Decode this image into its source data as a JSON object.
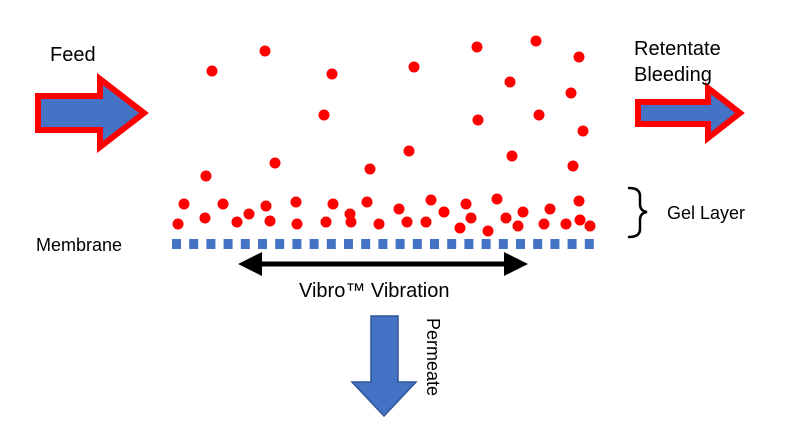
{
  "labels": {
    "feed": "Feed",
    "retentate_line1": "Retentate",
    "retentate_line2": "Bleeding",
    "gel_layer": "Gel Layer",
    "membrane": "Membrane",
    "vibration": "Vibro™ Vibration",
    "permeate": "Permeate"
  },
  "colors": {
    "arrow_fill": "#4472c4",
    "arrow_outline": "#ff0000",
    "particle": "#ff0000",
    "membrane": "#4472c4",
    "permeate_arrow_fill": "#4472c4",
    "permeate_arrow_outline": "#2f5597",
    "vibration_arrow": "#000000",
    "text": "#000000"
  }
}
